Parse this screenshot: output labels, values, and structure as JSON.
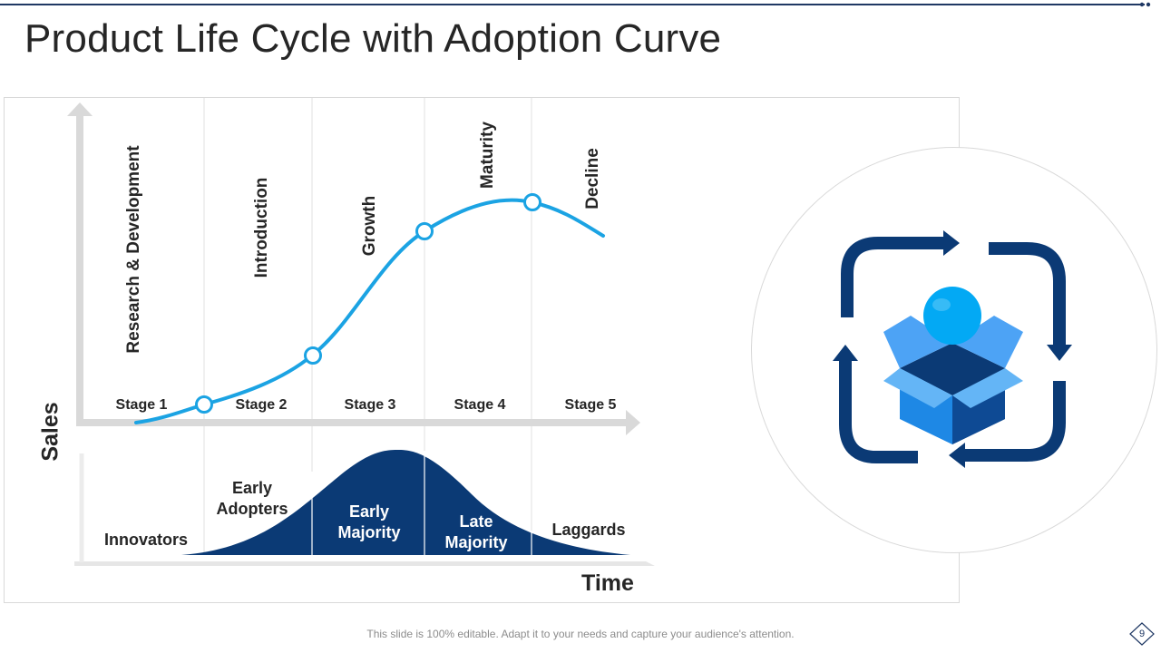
{
  "slide": {
    "title": "Product Life Cycle with Adoption Curve",
    "footer": "This slide is 100% editable. Adapt it to your needs and capture your audience's attention.",
    "page_number": "9"
  },
  "diagram": {
    "stage_names": [
      "Research & Development",
      "Introduction",
      "Growth",
      "Maturity",
      "Decline"
    ],
    "stage_labels": [
      "Stage 1",
      "Stage 2",
      "Stage 3",
      "Stage 4",
      "Stage 5"
    ],
    "adopter_groups": [
      {
        "line1": "Innovators",
        "line2": ""
      },
      {
        "line1": "Early",
        "line2": "Adopters"
      },
      {
        "line1": "Early",
        "line2": "Majority"
      },
      {
        "line1": "Late",
        "line2": "Majority"
      },
      {
        "line1": "Laggards",
        "line2": ""
      }
    ],
    "y_axis_label": "Sales",
    "x_axis_label": "Time"
  },
  "colors": {
    "curve": "#1ba3e3",
    "bell": "#0b3a75",
    "axis": "#d9d9d9",
    "icon_arrows": "#0b3a75",
    "box": "#1e88e5",
    "ball": "#03a9f4"
  },
  "icons": {
    "cycle": "product-cycle-icon"
  }
}
